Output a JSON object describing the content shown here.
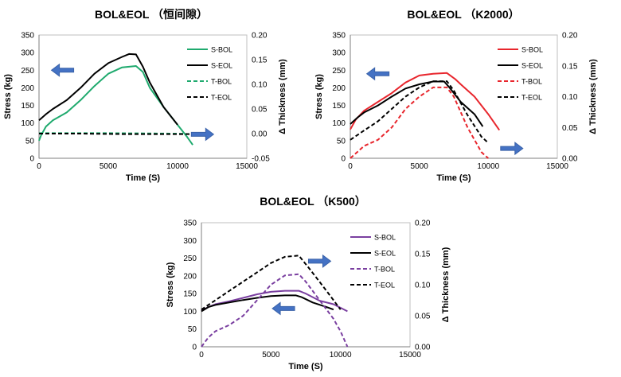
{
  "chart_data": [
    {
      "id": "a",
      "type": "line",
      "title": "BOL&EOL （恒间隙）",
      "xlabel": "Time (S)",
      "ylabel": "Stress (kg)",
      "y2label": "Δ Thickness (mm)",
      "xlim": [
        0,
        15000
      ],
      "ylim": [
        0,
        350
      ],
      "y2lim": [
        -0.05,
        0.2
      ],
      "xticks": [
        "0",
        "5000",
        "10000",
        "15000"
      ],
      "yticks": [
        "0",
        "50",
        "100",
        "150",
        "200",
        "250",
        "300",
        "350"
      ],
      "y2ticks": [
        "-0.05",
        "0.00",
        "0.05",
        "0.10",
        "0.15",
        "0.20"
      ],
      "arrows": [
        {
          "direction": "left",
          "target_axis": "y",
          "x": 1700,
          "y": 250
        },
        {
          "direction": "right",
          "target_axis": "y",
          "x": 11800,
          "y": 68
        }
      ],
      "series": [
        {
          "name": "S-BOL",
          "axis": "y",
          "color": "#1faa6e",
          "dash": false,
          "points": [
            [
              0,
              50
            ],
            [
              150,
              65
            ],
            [
              500,
              90
            ],
            [
              1000,
              108
            ],
            [
              2000,
              130
            ],
            [
              3000,
              165
            ],
            [
              4000,
              205
            ],
            [
              5000,
              240
            ],
            [
              6000,
              258
            ],
            [
              7000,
              262
            ],
            [
              7500,
              245
            ],
            [
              8000,
              200
            ],
            [
              9000,
              145
            ],
            [
              10000,
              95
            ],
            [
              10700,
              60
            ],
            [
              11100,
              38
            ]
          ]
        },
        {
          "name": "S-EOL",
          "axis": "y",
          "color": "#000000",
          "dash": false,
          "points": [
            [
              0,
              108
            ],
            [
              500,
              125
            ],
            [
              1000,
              140
            ],
            [
              2000,
              165
            ],
            [
              3000,
              200
            ],
            [
              4000,
              240
            ],
            [
              5000,
              270
            ],
            [
              6000,
              288
            ],
            [
              6500,
              296
            ],
            [
              7000,
              295
            ],
            [
              7500,
              260
            ],
            [
              8000,
              215
            ],
            [
              9000,
              145
            ],
            [
              10000,
              95
            ]
          ]
        },
        {
          "name": "T-BOL",
          "axis": "y2",
          "color": "#1faa6e",
          "dash": true,
          "points": [
            [
              0,
              0.001
            ],
            [
              5000,
              0.001
            ],
            [
              10000,
              0.0
            ],
            [
              11000,
              -0.001
            ]
          ]
        },
        {
          "name": "T-EOL",
          "axis": "y2",
          "color": "#000000",
          "dash": true,
          "points": [
            [
              0,
              0.0
            ],
            [
              3000,
              0.0
            ],
            [
              6000,
              -0.001
            ],
            [
              9000,
              -0.001
            ],
            [
              11000,
              -0.001
            ]
          ]
        }
      ]
    },
    {
      "id": "b",
      "type": "line",
      "title": "BOL&EOL （K2000）",
      "xlabel": "Time (S)",
      "ylabel": "Stress (kg)",
      "y2label": "Δ Thickness (mm)",
      "xlim": [
        0,
        15000
      ],
      "ylim": [
        0,
        350
      ],
      "y2lim": [
        0.0,
        0.2
      ],
      "xticks": [
        "0",
        "5000",
        "10000",
        "15000"
      ],
      "yticks": [
        "0",
        "50",
        "100",
        "150",
        "200",
        "250",
        "300",
        "350"
      ],
      "y2ticks": [
        "0.00",
        "0.05",
        "0.10",
        "0.15",
        "0.20"
      ],
      "arrows": [
        {
          "direction": "left",
          "target_axis": "y",
          "x": 2000,
          "y": 240
        },
        {
          "direction": "right",
          "target_axis": "y",
          "x": 11700,
          "y": 28
        }
      ],
      "series": [
        {
          "name": "S-BOL",
          "axis": "y",
          "color": "#e8262d",
          "dash": false,
          "points": [
            [
              0,
              82
            ],
            [
              400,
              110
            ],
            [
              1000,
              135
            ],
            [
              2000,
              160
            ],
            [
              3000,
              185
            ],
            [
              4000,
              215
            ],
            [
              5000,
              235
            ],
            [
              6000,
              240
            ],
            [
              7000,
              242
            ],
            [
              7600,
              225
            ],
            [
              8000,
              210
            ],
            [
              9000,
              175
            ],
            [
              10000,
              125
            ],
            [
              10800,
              80
            ]
          ]
        },
        {
          "name": "S-EOL",
          "axis": "y",
          "color": "#000000",
          "dash": false,
          "points": [
            [
              0,
              97
            ],
            [
              500,
              115
            ],
            [
              1000,
              130
            ],
            [
              2000,
              150
            ],
            [
              3000,
              175
            ],
            [
              4000,
              198
            ],
            [
              5000,
              210
            ],
            [
              6000,
              218
            ],
            [
              6800,
              218
            ],
            [
              7200,
              200
            ],
            [
              8000,
              160
            ],
            [
              9000,
              125
            ],
            [
              9600,
              90
            ]
          ]
        },
        {
          "name": "T-BOL",
          "axis": "y2",
          "color": "#e8262d",
          "dash": true,
          "points": [
            [
              0,
              0.0
            ],
            [
              1000,
              0.02
            ],
            [
              2000,
              0.03
            ],
            [
              3000,
              0.05
            ],
            [
              4000,
              0.08
            ],
            [
              5000,
              0.1
            ],
            [
              6000,
              0.115
            ],
            [
              7000,
              0.115
            ],
            [
              7500,
              0.1
            ],
            [
              8500,
              0.05
            ],
            [
              9500,
              0.01
            ],
            [
              10000,
              0.0
            ]
          ]
        },
        {
          "name": "T-EOL",
          "axis": "y2",
          "color": "#000000",
          "dash": true,
          "points": [
            [
              0,
              0.03
            ],
            [
              1000,
              0.045
            ],
            [
              2000,
              0.06
            ],
            [
              3000,
              0.08
            ],
            [
              4000,
              0.1
            ],
            [
              5000,
              0.115
            ],
            [
              6000,
              0.125
            ],
            [
              7000,
              0.125
            ],
            [
              7500,
              0.11
            ],
            [
              8500,
              0.07
            ],
            [
              9500,
              0.035
            ],
            [
              10000,
              0.025
            ]
          ]
        }
      ]
    },
    {
      "id": "c",
      "type": "line",
      "title": "BOL&EOL （K500）",
      "xlabel": "Time (S)",
      "ylabel": "Stress (kg)",
      "y2label": "Δ Thickness (mm)",
      "xlim": [
        0,
        15000
      ],
      "ylim": [
        0,
        350
      ],
      "y2lim": [
        0.0,
        0.2
      ],
      "xticks": [
        "0",
        "5000",
        "10000",
        "15000"
      ],
      "yticks": [
        "0",
        "50",
        "100",
        "150",
        "200",
        "250",
        "300",
        "350"
      ],
      "y2ticks": [
        "0.00",
        "0.05",
        "0.10",
        "0.15",
        "0.20"
      ],
      "arrows": [
        {
          "direction": "right",
          "target_axis": "y2",
          "x": 8500,
          "y": 0.138
        },
        {
          "direction": "left",
          "target_axis": "y",
          "x": 5900,
          "y": 108
        }
      ],
      "series": [
        {
          "name": "S-BOL",
          "axis": "y",
          "color": "#7a3fa0",
          "dash": false,
          "points": [
            [
              0,
              102
            ],
            [
              500,
              112
            ],
            [
              1000,
              120
            ],
            [
              2000,
              128
            ],
            [
              3000,
              138
            ],
            [
              4000,
              148
            ],
            [
              5000,
              155
            ],
            [
              6000,
              158
            ],
            [
              7000,
              158
            ],
            [
              7500,
              150
            ],
            [
              8500,
              130
            ],
            [
              9500,
              120
            ],
            [
              10500,
              100
            ]
          ]
        },
        {
          "name": "S-EOL",
          "axis": "y",
          "color": "#000000",
          "dash": false,
          "points": [
            [
              0,
              100
            ],
            [
              500,
              112
            ],
            [
              1000,
              118
            ],
            [
              2000,
              125
            ],
            [
              3000,
              132
            ],
            [
              4000,
              138
            ],
            [
              5000,
              143
            ],
            [
              6000,
              145
            ],
            [
              6800,
              145
            ],
            [
              7200,
              140
            ],
            [
              8000,
              125
            ],
            [
              9000,
              112
            ],
            [
              9500,
              105
            ]
          ]
        },
        {
          "name": "T-BOL",
          "axis": "y2",
          "color": "#7a3fa0",
          "dash": true,
          "points": [
            [
              0,
              0.0
            ],
            [
              500,
              0.015
            ],
            [
              1000,
              0.025
            ],
            [
              2000,
              0.035
            ],
            [
              3000,
              0.05
            ],
            [
              4000,
              0.075
            ],
            [
              5000,
              0.1
            ],
            [
              6000,
              0.115
            ],
            [
              7000,
              0.117
            ],
            [
              7500,
              0.105
            ],
            [
              8500,
              0.075
            ],
            [
              9500,
              0.045
            ],
            [
              10000,
              0.025
            ],
            [
              10500,
              0.0
            ]
          ]
        },
        {
          "name": "T-EOL",
          "axis": "y2",
          "color": "#000000",
          "dash": true,
          "points": [
            [
              0,
              0.06
            ],
            [
              1000,
              0.075
            ],
            [
              2000,
              0.09
            ],
            [
              3000,
              0.105
            ],
            [
              4000,
              0.12
            ],
            [
              5000,
              0.135
            ],
            [
              6000,
              0.145
            ],
            [
              7000,
              0.147
            ],
            [
              7800,
              0.125
            ],
            [
              9000,
              0.09
            ],
            [
              10000,
              0.06
            ]
          ]
        }
      ]
    }
  ]
}
